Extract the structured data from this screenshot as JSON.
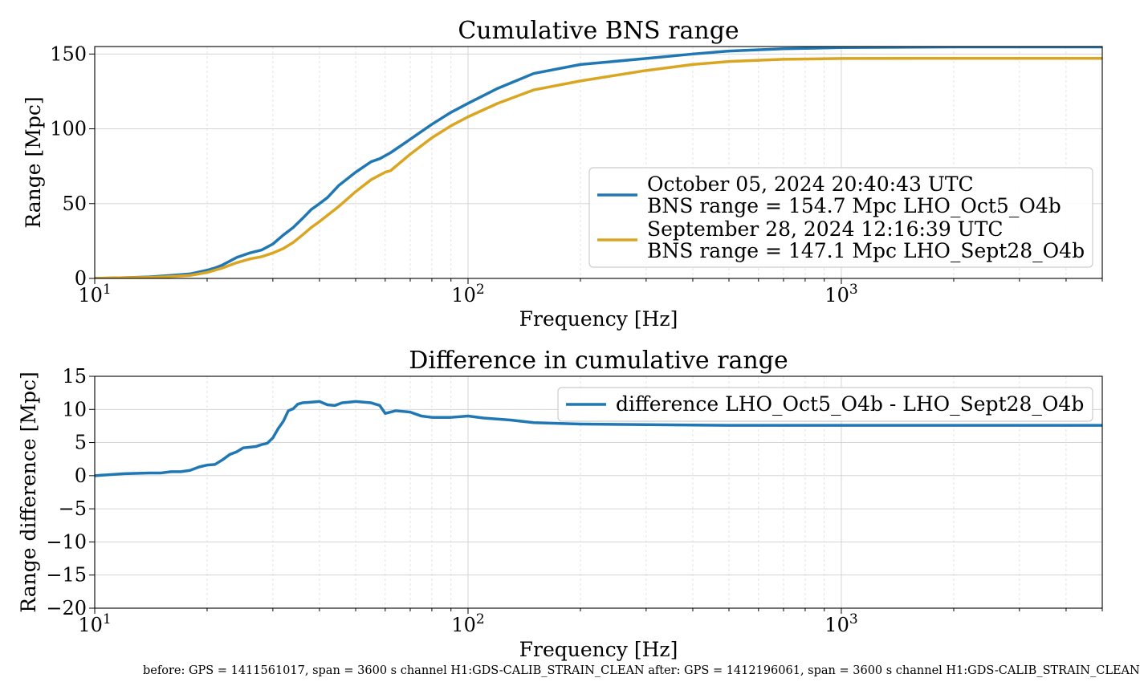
{
  "chart_data": [
    {
      "type": "line",
      "title": "Cumulative BNS range",
      "xlabel": "Frequency [Hz]",
      "ylabel": "Range [Mpc]",
      "xscale": "log",
      "xlim": [
        10,
        5000
      ],
      "ylim": [
        0,
        155
      ],
      "xtick_labels": [
        "10^1",
        "10^2",
        "10^3"
      ],
      "ytick_labels": [
        "0",
        "50",
        "100",
        "150"
      ],
      "grid": true,
      "legend_position": "lower-right",
      "series": [
        {
          "name_line1": "October 05, 2024 20:40:43 UTC",
          "name_line2": "BNS range = 154.7 Mpc LHO_Oct5_O4b",
          "color": "#1f77b4",
          "x": [
            10,
            12,
            14,
            16,
            18,
            20,
            21,
            22,
            24,
            26,
            28,
            30,
            32,
            34,
            36,
            38,
            40,
            42,
            45,
            50,
            55,
            58,
            62,
            70,
            80,
            90,
            100,
            120,
            150,
            200,
            300,
            400,
            500,
            700,
            1000,
            2000,
            5000
          ],
          "y": [
            0,
            0.5,
            1,
            2,
            3,
            5.5,
            7,
            9,
            14,
            17,
            19,
            23,
            29,
            34,
            40,
            46,
            50,
            54,
            62,
            71,
            78,
            80,
            84,
            93,
            103,
            111,
            117,
            127,
            137,
            143,
            147,
            150,
            152,
            153.5,
            154.3,
            154.7,
            154.7
          ]
        },
        {
          "name_line1": "September 28, 2024 12:16:39 UTC",
          "name_line2": "BNS range = 147.1 Mpc LHO_Sept28_O4b",
          "color": "#daa520",
          "x": [
            10,
            12,
            14,
            16,
            18,
            20,
            22,
            24,
            26,
            28,
            30,
            32,
            34,
            36,
            38,
            40,
            45,
            50,
            55,
            60,
            62,
            70,
            80,
            90,
            100,
            120,
            150,
            200,
            300,
            400,
            500,
            700,
            1000,
            2000,
            5000
          ],
          "y": [
            0,
            0.5,
            0.7,
            1.3,
            2,
            4,
            7,
            10.5,
            13,
            14.5,
            17,
            20,
            24,
            29,
            34,
            38,
            48,
            58,
            66,
            71,
            72,
            83,
            94,
            102,
            108,
            117,
            126,
            132,
            139,
            143,
            145,
            146.5,
            147,
            147.1,
            147.1
          ]
        }
      ]
    },
    {
      "type": "line",
      "title": "Difference in cumulative range",
      "xlabel": "Frequency [Hz]",
      "ylabel": "Range difference [Mpc]",
      "xscale": "log",
      "xlim": [
        10,
        5000
      ],
      "ylim": [
        -20,
        15
      ],
      "xtick_labels": [
        "10^1",
        "10^2",
        "10^3"
      ],
      "ytick_labels": [
        "15",
        "10",
        "5",
        "0",
        "−5",
        "−10",
        "−15",
        "−20"
      ],
      "grid": true,
      "legend_position": "upper-right",
      "series": [
        {
          "name": "difference LHO_Oct5_O4b - LHO_Sept28_O4b",
          "color": "#1f77b4",
          "x": [
            10,
            12,
            14,
            15,
            16,
            17,
            18,
            19,
            20,
            21,
            22,
            23,
            24,
            25,
            26,
            27,
            28,
            29,
            30,
            31,
            32,
            33,
            34,
            35,
            36,
            38,
            40,
            42,
            44,
            46,
            48,
            50,
            55,
            58,
            60,
            62,
            64,
            70,
            75,
            80,
            90,
            100,
            110,
            130,
            150,
            200,
            300,
            500,
            1000,
            5000
          ],
          "y": [
            0,
            0.3,
            0.4,
            0.4,
            0.6,
            0.6,
            0.8,
            1.3,
            1.6,
            1.7,
            2.4,
            3.2,
            3.6,
            4.2,
            4.3,
            4.4,
            4.7,
            4.9,
            5.7,
            7.1,
            8.2,
            9.8,
            10.1,
            10.8,
            11.0,
            11.1,
            11.2,
            10.7,
            10.6,
            11.0,
            11.1,
            11.2,
            11.0,
            10.6,
            9.4,
            9.6,
            9.8,
            9.6,
            9.0,
            8.8,
            8.8,
            9.0,
            8.7,
            8.4,
            8.0,
            7.8,
            7.7,
            7.6,
            7.6,
            7.6
          ]
        }
      ]
    }
  ],
  "footnote": "before: GPS = 1411561017, span = 3600 s channel H1:GDS-CALIB_STRAIN_CLEAN after: GPS = 1412196061, span = 3600 s channel H1:GDS-CALIB_STRAIN_CLEAN"
}
